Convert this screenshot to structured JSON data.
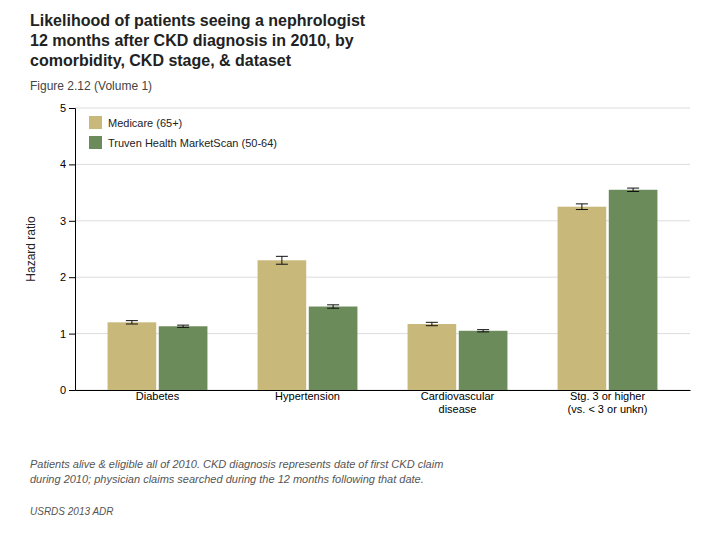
{
  "chart_data": {
    "type": "bar",
    "title": "Likelihood of patients seeing a nephrologist\n12 months after CKD diagnosis in 2010, by\ncomorbidity, CKD stage, & dataset",
    "subtitle": "Figure 2.12 (Volume 1)",
    "ylabel": "Hazard ratio",
    "categories": [
      "Diabetes",
      "Hypertension",
      "Cardiovascular\ndisease",
      "Stg. 3 or higher\n(vs. < 3 or unkn)"
    ],
    "series": [
      {
        "name": "Medicare (65+)",
        "color": "#C8B87A",
        "values": [
          1.2,
          2.3,
          1.17,
          3.25
        ],
        "errors": [
          0.03,
          0.07,
          0.03,
          0.05
        ]
      },
      {
        "name": "Truven Health MarketScan (50-64)",
        "color": "#6B8C5A",
        "values": [
          1.13,
          1.48,
          1.05,
          3.55
        ],
        "errors": [
          0.02,
          0.03,
          0.02,
          0.03
        ]
      }
    ],
    "ylim": [
      0,
      5
    ],
    "yticks": [
      0,
      1,
      2,
      3,
      4,
      5
    ],
    "grid": true,
    "legend": "upper left",
    "footnote": "Patients alive & eligible all of 2010. CKD diagnosis represents date of first CKD claim\nduring 2010; physician claims searched during the 12 months following that date.",
    "source": "USRDS 2013 ADR"
  }
}
